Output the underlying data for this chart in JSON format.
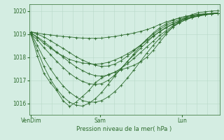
{
  "title": "Pression niveau de la mer( hPa )",
  "bg_color": "#d4ede2",
  "line_color": "#2d6b2d",
  "grid_color_v": "#b8d8c8",
  "grid_color_h": "#b8d8c8",
  "ylim": [
    1015.5,
    1020.3
  ],
  "yticks": [
    1016,
    1017,
    1018,
    1019,
    1020
  ],
  "xtick_labels": [
    "VenDim",
    "Sam",
    "Lun"
  ],
  "xtick_positions": [
    0.0,
    0.37,
    0.81
  ],
  "n_xgrid": 18,
  "series": [
    [
      1019.0,
      1018.05,
      1017.3,
      1016.9,
      1016.55,
      1016.1,
      1015.87,
      1016.05,
      1016.3,
      1016.55,
      1016.9,
      1017.1,
      1017.25,
      1017.35,
      1017.45,
      1017.55,
      1017.65,
      1017.8,
      1018.0,
      1018.3,
      1018.65,
      1019.0,
      1019.3,
      1019.55,
      1019.72,
      1019.85,
      1019.93,
      1019.97,
      1020.0,
      1020.02
    ],
    [
      1019.05,
      1018.85,
      1018.6,
      1018.4,
      1018.2,
      1018.05,
      1017.9,
      1017.82,
      1017.75,
      1017.72,
      1017.7,
      1017.72,
      1017.78,
      1017.88,
      1018.0,
      1018.15,
      1018.32,
      1018.52,
      1018.72,
      1018.92,
      1019.1,
      1019.28,
      1019.42,
      1019.55,
      1019.65,
      1019.73,
      1019.8,
      1019.85,
      1019.88,
      1019.9
    ],
    [
      1019.05,
      1018.5,
      1017.95,
      1017.5,
      1017.1,
      1016.75,
      1016.48,
      1016.28,
      1016.12,
      1016.05,
      1016.05,
      1016.12,
      1016.28,
      1016.5,
      1016.78,
      1017.1,
      1017.45,
      1017.82,
      1018.18,
      1018.52,
      1018.82,
      1019.08,
      1019.3,
      1019.48,
      1019.62,
      1019.72,
      1019.8,
      1019.85,
      1019.88,
      1019.9
    ],
    [
      1019.1,
      1019.05,
      1019.0,
      1018.97,
      1018.93,
      1018.9,
      1018.88,
      1018.85,
      1018.83,
      1018.82,
      1018.82,
      1018.83,
      1018.87,
      1018.9,
      1018.95,
      1019.0,
      1019.05,
      1019.12,
      1019.2,
      1019.3,
      1019.42,
      1019.53,
      1019.62,
      1019.7,
      1019.77,
      1019.82,
      1019.86,
      1019.88,
      1019.9,
      1019.92
    ],
    [
      1019.0,
      1018.75,
      1018.42,
      1018.12,
      1017.82,
      1017.55,
      1017.3,
      1017.1,
      1016.95,
      1016.85,
      1016.82,
      1016.85,
      1017.0,
      1017.22,
      1017.5,
      1017.82,
      1018.15,
      1018.48,
      1018.78,
      1019.05,
      1019.28,
      1019.45,
      1019.6,
      1019.7,
      1019.77,
      1019.82,
      1019.86,
      1019.88,
      1019.9,
      1019.92
    ],
    [
      1019.0,
      1018.3,
      1017.6,
      1017.05,
      1016.62,
      1016.28,
      1016.05,
      1015.92,
      1015.88,
      1016.0,
      1016.2,
      1016.48,
      1016.82,
      1017.18,
      1017.52,
      1017.82,
      1018.1,
      1018.38,
      1018.65,
      1018.9,
      1019.12,
      1019.3,
      1019.45,
      1019.58,
      1019.68,
      1019.75,
      1019.8,
      1019.85,
      1019.88,
      1019.9
    ],
    [
      1019.05,
      1018.88,
      1018.68,
      1018.45,
      1018.22,
      1018.0,
      1017.78,
      1017.58,
      1017.42,
      1017.28,
      1017.2,
      1017.18,
      1017.22,
      1017.35,
      1017.52,
      1017.72,
      1017.95,
      1018.2,
      1018.45,
      1018.7,
      1018.95,
      1019.15,
      1019.35,
      1019.5,
      1019.62,
      1019.72,
      1019.78,
      1019.83,
      1019.87,
      1019.9
    ],
    [
      1019.1,
      1019.0,
      1018.88,
      1018.72,
      1018.55,
      1018.38,
      1018.2,
      1018.02,
      1017.88,
      1017.75,
      1017.65,
      1017.6,
      1017.62,
      1017.7,
      1017.85,
      1018.05,
      1018.28,
      1018.52,
      1018.78,
      1019.0,
      1019.2,
      1019.38,
      1019.52,
      1019.63,
      1019.72,
      1019.78,
      1019.83,
      1019.87,
      1019.9,
      1019.92
    ]
  ]
}
